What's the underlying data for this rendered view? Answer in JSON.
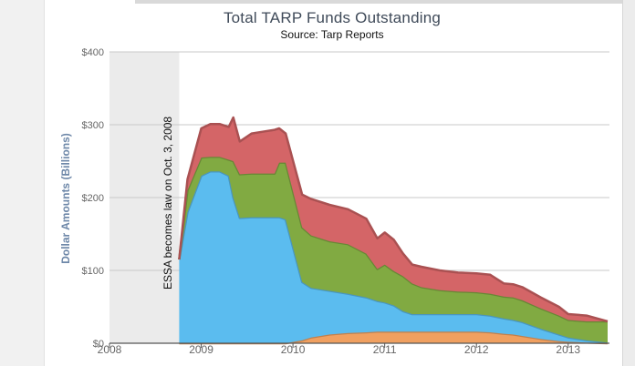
{
  "chart_data": {
    "type": "area",
    "stacked": true,
    "title": "Total TARP Funds Outstanding",
    "subtitle": "Source:  Tarp Reports",
    "ylabel": "Dollar Amounts (Billions)",
    "ylim": [
      0,
      400
    ],
    "xlim": [
      2008,
      2013.45
    ],
    "yticks": [
      {
        "value": 0,
        "label": "$0"
      },
      {
        "value": 100,
        "label": "$100"
      },
      {
        "value": 200,
        "label": "$200"
      },
      {
        "value": 300,
        "label": "$300"
      },
      {
        "value": 400,
        "label": "$400"
      }
    ],
    "xticks": [
      {
        "value": 2008,
        "label": "2008"
      },
      {
        "value": 2009,
        "label": "2009"
      },
      {
        "value": 2010,
        "label": "2010"
      },
      {
        "value": 2011,
        "label": "2011"
      },
      {
        "value": 2012,
        "label": "2012"
      },
      {
        "value": 2013,
        "label": "2013"
      }
    ],
    "grid": true,
    "shaded_region": {
      "x_start": 2008,
      "x_end": 2008.76
    },
    "annotation": "ESSA becomes law on Oct. 3, 2008",
    "x": [
      2008.76,
      2008.85,
      2009.0,
      2009.1,
      2009.2,
      2009.3,
      2009.35,
      2009.42,
      2009.55,
      2009.7,
      2009.8,
      2009.85,
      2009.92,
      2010.1,
      2010.2,
      2010.4,
      2010.6,
      2010.8,
      2010.92,
      2011.0,
      2011.1,
      2011.2,
      2011.3,
      2011.4,
      2011.6,
      2011.8,
      2012.0,
      2012.15,
      2012.3,
      2012.4,
      2012.5,
      2012.7,
      2012.9,
      2013.0,
      2013.2,
      2013.43
    ],
    "series": [
      {
        "color": "#f0a060",
        "values": [
          0,
          0,
          0,
          0,
          0,
          0,
          0,
          0,
          0,
          0,
          0,
          0,
          0,
          4,
          8,
          12,
          14,
          15,
          16,
          16,
          16,
          16,
          16,
          16,
          16,
          16,
          16,
          15,
          13,
          12,
          10,
          6,
          3,
          2,
          1,
          0
        ]
      },
      {
        "color": "#5bbcef",
        "values": [
          115,
          180,
          230,
          236,
          236,
          230,
          200,
          172,
          173,
          173,
          173,
          173,
          170,
          80,
          68,
          60,
          54,
          48,
          42,
          40,
          36,
          28,
          24,
          24,
          24,
          24,
          24,
          23,
          21,
          20,
          19,
          14,
          9,
          6,
          3,
          1
        ]
      },
      {
        "color": "#81aa42",
        "values": [
          0,
          30,
          25,
          20,
          20,
          22,
          50,
          60,
          60,
          60,
          60,
          75,
          78,
          75,
          72,
          68,
          68,
          60,
          44,
          52,
          47,
          48,
          42,
          37,
          33,
          31,
          30,
          30,
          30,
          31,
          30,
          28,
          26,
          24,
          26,
          29
        ]
      },
      {
        "color": "#d46567",
        "values": [
          0,
          15,
          40,
          45,
          45,
          45,
          60,
          45,
          55,
          58,
          60,
          47,
          40,
          45,
          50,
          50,
          48,
          48,
          42,
          44,
          43,
          31,
          26,
          28,
          27,
          26,
          26,
          26,
          18,
          18,
          18,
          15,
          12,
          8,
          8,
          0
        ]
      }
    ]
  }
}
